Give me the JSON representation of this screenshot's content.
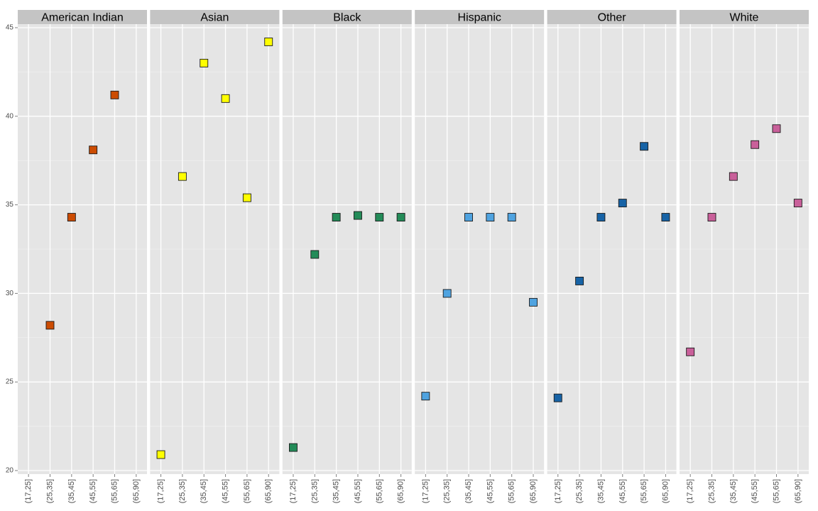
{
  "chart_data": {
    "type": "scatter",
    "facets": [
      "American Indian",
      "Asian",
      "Black",
      "Hispanic",
      "Other",
      "White"
    ],
    "categories": [
      "(17,25]",
      "(25,35]",
      "(35,45]",
      "(45,55]",
      "(55,65]",
      "(65,90]"
    ],
    "yticks": [
      20,
      25,
      30,
      35,
      40,
      45
    ],
    "ylim": [
      19.8,
      45.2
    ],
    "grid": true,
    "legend": "none",
    "series": [
      {
        "facet": "American Indian",
        "color": "#cc4c02",
        "values": [
          null,
          28.2,
          34.3,
          38.1,
          41.2,
          null
        ]
      },
      {
        "facet": "Asian",
        "color": "#ffff00",
        "values": [
          20.9,
          36.6,
          43.0,
          41.0,
          35.4,
          44.2
        ]
      },
      {
        "facet": "Black",
        "color": "#238b58",
        "values": [
          21.3,
          32.2,
          34.3,
          34.4,
          34.3,
          34.3
        ]
      },
      {
        "facet": "Hispanic",
        "color": "#4fa3e0",
        "values": [
          24.2,
          30.0,
          34.3,
          34.3,
          34.3,
          29.5
        ]
      },
      {
        "facet": "Other",
        "color": "#1763a6",
        "values": [
          24.1,
          30.7,
          34.3,
          35.1,
          38.3,
          34.3
        ]
      },
      {
        "facet": "White",
        "color": "#c9609a",
        "values": [
          26.7,
          34.3,
          36.6,
          38.4,
          39.3,
          35.1
        ]
      }
    ]
  }
}
